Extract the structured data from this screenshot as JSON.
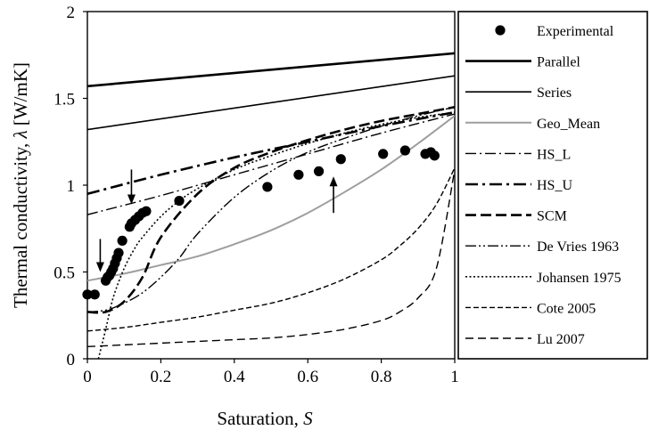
{
  "chart_data": {
    "type": "line",
    "xlabel": "Saturation, ",
    "xlabel_var": "S",
    "ylabel": "Thermal conductivity, ",
    "ylabel_var": "λ",
    "ylabel_unit": " [W/mK]",
    "xlim": [
      0,
      1
    ],
    "ylim": [
      0,
      2
    ],
    "xticks": [
      "0",
      "0.2",
      "0.4",
      "0.6",
      "0.8",
      "1"
    ],
    "yticks": [
      "0",
      "0.5",
      "1",
      "1.5",
      "2"
    ],
    "grid": false,
    "legend_placement": "right-outside",
    "experimental": {
      "name": "Experimental",
      "points": [
        [
          0.0,
          0.37
        ],
        [
          0.02,
          0.37
        ],
        [
          0.05,
          0.45
        ],
        [
          0.055,
          0.47
        ],
        [
          0.06,
          0.48
        ],
        [
          0.065,
          0.5
        ],
        [
          0.07,
          0.52
        ],
        [
          0.075,
          0.55
        ],
        [
          0.08,
          0.58
        ],
        [
          0.085,
          0.61
        ],
        [
          0.095,
          0.68
        ],
        [
          0.115,
          0.76
        ],
        [
          0.12,
          0.78
        ],
        [
          0.13,
          0.8
        ],
        [
          0.14,
          0.82
        ],
        [
          0.15,
          0.84
        ],
        [
          0.16,
          0.85
        ],
        [
          0.25,
          0.91
        ],
        [
          0.49,
          0.99
        ],
        [
          0.575,
          1.06
        ],
        [
          0.63,
          1.08
        ],
        [
          0.69,
          1.15
        ],
        [
          0.805,
          1.18
        ],
        [
          0.865,
          1.2
        ],
        [
          0.92,
          1.18
        ],
        [
          0.935,
          1.19
        ],
        [
          0.945,
          1.17
        ]
      ]
    },
    "series": [
      {
        "name": "Parallel",
        "style": "solid",
        "width": 2.6,
        "color": "#000000",
        "x": [
          0,
          1
        ],
        "y": [
          1.57,
          1.76
        ]
      },
      {
        "name": "Series",
        "style": "solid",
        "width": 1.6,
        "color": "#000000",
        "x": [
          0,
          1
        ],
        "y": [
          1.32,
          1.63
        ]
      },
      {
        "name": "Geo_Mean",
        "style": "solid",
        "width": 2.0,
        "color": "#9e9e9e",
        "x": [
          0,
          0.1,
          0.2,
          0.3,
          0.4,
          0.5,
          0.6,
          0.7,
          0.8,
          0.9,
          1
        ],
        "y": [
          0.45,
          0.49,
          0.54,
          0.59,
          0.66,
          0.74,
          0.84,
          0.96,
          1.09,
          1.24,
          1.4
        ]
      },
      {
        "name": "HS_L",
        "style": "dashdot",
        "width": 1.4,
        "color": "#000000",
        "x": [
          0,
          0.2,
          0.4,
          0.6,
          0.8,
          1
        ],
        "y": [
          0.83,
          0.94,
          1.06,
          1.18,
          1.3,
          1.41
        ]
      },
      {
        "name": "HS_U",
        "style": "dashdot-thick",
        "width": 2.6,
        "color": "#000000",
        "x": [
          0,
          0.2,
          0.4,
          0.6,
          0.8,
          1
        ],
        "y": [
          0.95,
          1.06,
          1.16,
          1.25,
          1.34,
          1.42
        ]
      },
      {
        "name": "SCM",
        "style": "dash-thick",
        "width": 2.6,
        "color": "#000000",
        "x": [
          0,
          0.05,
          0.1,
          0.15,
          0.2,
          0.3,
          0.4,
          0.5,
          0.6,
          0.7,
          0.8,
          0.9,
          1
        ],
        "y": [
          0.27,
          0.27,
          0.33,
          0.47,
          0.7,
          0.95,
          1.1,
          1.19,
          1.26,
          1.32,
          1.37,
          1.41,
          1.45
        ]
      },
      {
        "name": "De Vries 1963",
        "style": "dashdotdot",
        "width": 1.4,
        "color": "#000000",
        "x": [
          0,
          0.05,
          0.1,
          0.15,
          0.2,
          0.25,
          0.3,
          0.4,
          0.5,
          0.6,
          0.7,
          0.8,
          0.9,
          1
        ],
        "y": [
          0.27,
          0.28,
          0.32,
          0.38,
          0.47,
          0.58,
          0.72,
          0.93,
          1.08,
          1.19,
          1.27,
          1.34,
          1.4,
          1.45
        ]
      },
      {
        "name": "Johansen 1975",
        "style": "dotted",
        "width": 1.6,
        "color": "#000000",
        "x": [
          0.03,
          0.05,
          0.07,
          0.1,
          0.13,
          0.15,
          0.2,
          0.25,
          0.3,
          0.4,
          0.5,
          0.6,
          0.7,
          0.8,
          0.9,
          1
        ],
        "y": [
          0.0,
          0.17,
          0.35,
          0.52,
          0.64,
          0.7,
          0.82,
          0.91,
          0.98,
          1.09,
          1.17,
          1.24,
          1.3,
          1.35,
          1.39,
          1.42
        ]
      },
      {
        "name": "Cote 2005",
        "style": "dashed-small",
        "width": 1.4,
        "color": "#000000",
        "x": [
          0,
          0.1,
          0.2,
          0.3,
          0.4,
          0.5,
          0.6,
          0.7,
          0.8,
          0.85,
          0.9,
          0.95,
          1
        ],
        "y": [
          0.16,
          0.18,
          0.21,
          0.24,
          0.28,
          0.32,
          0.38,
          0.46,
          0.57,
          0.65,
          0.75,
          0.89,
          1.1
        ]
      },
      {
        "name": "Lu 2007",
        "style": "dashed",
        "width": 1.4,
        "color": "#000000",
        "x": [
          0,
          0.1,
          0.2,
          0.3,
          0.4,
          0.5,
          0.6,
          0.7,
          0.8,
          0.85,
          0.9,
          0.95,
          1
        ],
        "y": [
          0.07,
          0.08,
          0.09,
          0.1,
          0.11,
          0.12,
          0.14,
          0.17,
          0.22,
          0.27,
          0.35,
          0.52,
          1.09
        ]
      }
    ],
    "annotations": [
      {
        "type": "arrow-down",
        "x": 0.035,
        "y_from": 0.69,
        "y_to": 0.5
      },
      {
        "type": "arrow-down",
        "x": 0.12,
        "y_from": 1.09,
        "y_to": 0.89
      },
      {
        "type": "arrow-up",
        "x": 0.67,
        "y_from": 0.84,
        "y_to": 1.05
      }
    ]
  }
}
